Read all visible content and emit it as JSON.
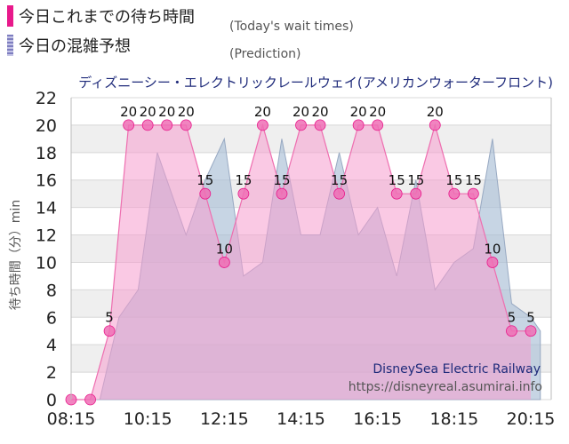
{
  "legend": {
    "today_label": "今日これまでの待ち時間",
    "today_sub": "(Today's wait times)",
    "today_color": "#e8198b",
    "prediction_label": "今日の混雑予想",
    "prediction_sub": "(Prediction)",
    "prediction_color": "#7e7ec0"
  },
  "chart_data": {
    "type": "area",
    "title": "ディズニーシー・エレクトリックレールウェイ(アメリカンウォーターフロント)",
    "ylabel": "待ち時間（分）min",
    "xlabel": "",
    "ylim": [
      0,
      22
    ],
    "yticks": [
      0,
      2,
      4,
      6,
      8,
      10,
      12,
      14,
      16,
      18,
      20,
      22
    ],
    "xlim": [
      "08:15",
      "20:30"
    ],
    "xticks": [
      "08:15",
      "10:15",
      "12:15",
      "14:15",
      "16:15",
      "18:15",
      "20:15"
    ],
    "grid": "horizontal",
    "watermark": {
      "line1": "DisneySea Electric Railway",
      "line2": "https://disneyreal.asumirai.info"
    },
    "series": [
      {
        "name": "今日これまでの待ち時間",
        "color": "#f07ab8",
        "points": [
          [
            "08:15",
            0
          ],
          [
            "08:45",
            0
          ],
          [
            "09:15",
            5
          ],
          [
            "09:45",
            20
          ],
          [
            "10:15",
            20
          ],
          [
            "10:45",
            20
          ],
          [
            "11:15",
            20
          ],
          [
            "11:45",
            15
          ],
          [
            "12:15",
            10
          ],
          [
            "12:45",
            15
          ],
          [
            "13:15",
            20
          ],
          [
            "13:45",
            15
          ],
          [
            "14:15",
            20
          ],
          [
            "14:45",
            20
          ],
          [
            "15:15",
            15
          ],
          [
            "15:45",
            20
          ],
          [
            "16:15",
            20
          ],
          [
            "16:45",
            15
          ],
          [
            "17:15",
            15
          ],
          [
            "17:45",
            20
          ],
          [
            "18:15",
            15
          ],
          [
            "18:45",
            15
          ],
          [
            "19:15",
            10
          ],
          [
            "19:45",
            5
          ],
          [
            "20:15",
            5
          ]
        ],
        "labels": [
          "",
          "",
          "5",
          "20",
          "20",
          "20",
          "20",
          "15",
          "10",
          "15",
          "20",
          "15",
          "20",
          "20",
          "15",
          "20",
          "20",
          "15",
          "15",
          "20",
          "15",
          "15",
          "10",
          "5",
          "5"
        ]
      },
      {
        "name": "今日の混雑予想",
        "color": "#a9bfd6",
        "points": [
          [
            "08:15",
            0
          ],
          [
            "08:30",
            0
          ],
          [
            "09:00",
            0
          ],
          [
            "09:30",
            6
          ],
          [
            "10:00",
            8
          ],
          [
            "10:30",
            18
          ],
          [
            "11:15",
            12
          ],
          [
            "11:45",
            16
          ],
          [
            "12:15",
            19
          ],
          [
            "12:45",
            9
          ],
          [
            "13:15",
            10
          ],
          [
            "13:45",
            19
          ],
          [
            "14:15",
            12
          ],
          [
            "14:45",
            12
          ],
          [
            "15:15",
            18
          ],
          [
            "15:45",
            12
          ],
          [
            "16:15",
            14
          ],
          [
            "16:45",
            9
          ],
          [
            "17:15",
            16
          ],
          [
            "17:45",
            8
          ],
          [
            "18:15",
            10
          ],
          [
            "18:45",
            11
          ],
          [
            "19:15",
            19
          ],
          [
            "19:45",
            7
          ],
          [
            "20:15",
            6
          ],
          [
            "20:30",
            5
          ]
        ]
      }
    ]
  }
}
